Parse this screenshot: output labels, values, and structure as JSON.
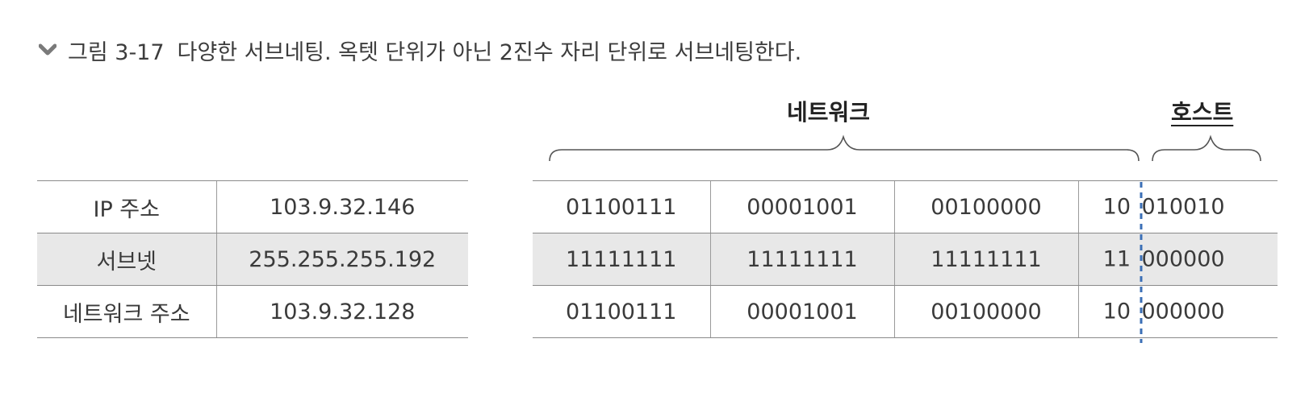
{
  "caption": {
    "label": "그림 3-17",
    "text": "다양한 서브네팅. 옥텟 단위가 아닌 2진수 자리 단위로 서브네팅한다."
  },
  "info_table": {
    "rows": [
      {
        "label": "IP 주소",
        "value": "103.9.32.146"
      },
      {
        "label": "서브넷",
        "value": "255.255.255.192"
      },
      {
        "label": "네트워크 주소",
        "value": "103.9.32.128"
      }
    ]
  },
  "binary_table": {
    "network_label": "네트워크",
    "host_label": "호스트",
    "rows": [
      {
        "o1": "01100111",
        "o2": "00001001",
        "o3": "00100000",
        "net_bits": "10",
        "host_bits": "010010"
      },
      {
        "o1": "11111111",
        "o2": "11111111",
        "o3": "11111111",
        "net_bits": "11",
        "host_bits": "000000"
      },
      {
        "o1": "01100111",
        "o2": "00001001",
        "o3": "00100000",
        "net_bits": "10",
        "host_bits": "000000"
      }
    ]
  },
  "colors": {
    "shaded_row": "#e8e8e8",
    "divider_dashed": "#3b6fb6",
    "chevron": "#7a7a7a"
  }
}
